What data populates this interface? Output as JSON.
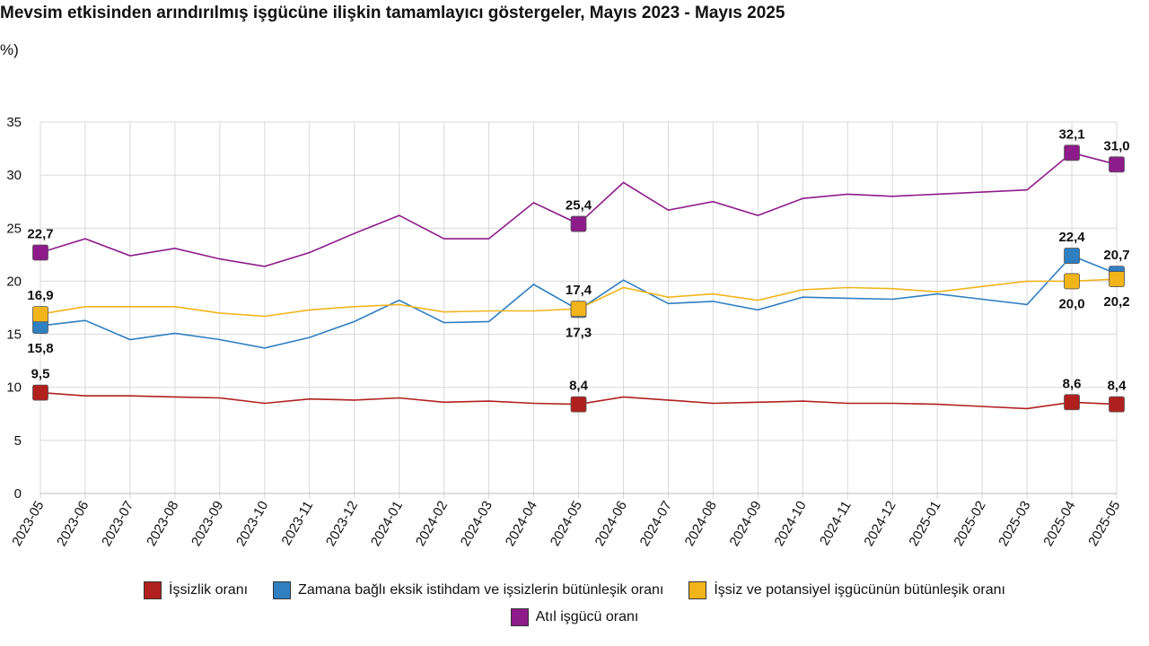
{
  "chart_data": {
    "type": "line",
    "title": "Mevsim etkisinden arındırılmış işgücüne ilişkin tamamlayıcı göstergeler, Mayıs 2023 - Mayıs 2025",
    "ylabel": "%)",
    "ylim": [
      0,
      35
    ],
    "yticks": [
      0,
      5,
      10,
      15,
      20,
      25,
      30,
      35
    ],
    "grid": true,
    "legend_position": "bottom",
    "x": [
      "2023-05",
      "2023-06",
      "2023-07",
      "2023-08",
      "2023-09",
      "2023-10",
      "2023-11",
      "2023-12",
      "2024-01",
      "2024-02",
      "2024-03",
      "2024-04",
      "2024-05",
      "2024-06",
      "2024-07",
      "2024-08",
      "2024-09",
      "2024-10",
      "2024-11",
      "2024-12",
      "2025-01",
      "2025-02",
      "2025-03",
      "2025-04",
      "2025-05"
    ],
    "series": [
      {
        "name": "İşsizlik oranı",
        "color": "#b0201e",
        "values": [
          9.5,
          9.2,
          9.2,
          9.1,
          9.0,
          8.5,
          8.9,
          8.8,
          9.0,
          8.6,
          8.7,
          8.5,
          8.4,
          9.1,
          8.8,
          8.5,
          8.6,
          8.7,
          8.5,
          8.5,
          8.4,
          8.2,
          8.0,
          8.6,
          8.4
        ],
        "markers": [
          0,
          12,
          23,
          24
        ],
        "labels": [
          {
            "index": 0,
            "text": "9,5",
            "pos": "above"
          },
          {
            "index": 12,
            "text": "8,4",
            "pos": "above"
          },
          {
            "index": 23,
            "text": "8,6",
            "pos": "above"
          },
          {
            "index": 24,
            "text": "8,4",
            "pos": "above"
          }
        ]
      },
      {
        "name": "Zamana bağlı eksik istihdam ve işsizlerin bütünleşik oranı",
        "color": "#2f7fc1",
        "values": [
          15.8,
          16.3,
          14.5,
          15.1,
          14.5,
          13.7,
          14.7,
          16.2,
          18.2,
          16.1,
          16.2,
          19.7,
          17.3,
          20.1,
          17.9,
          18.1,
          17.3,
          18.5,
          18.4,
          18.3,
          18.8,
          18.3,
          17.8,
          22.4,
          20.7
        ],
        "markers": [
          0,
          12,
          23,
          24
        ],
        "labels": [
          {
            "index": 0,
            "text": "15,8",
            "pos": "below"
          },
          {
            "index": 12,
            "text": "17,3",
            "pos": "below"
          },
          {
            "index": 23,
            "text": "22,4",
            "pos": "above"
          },
          {
            "index": 24,
            "text": "20,7",
            "pos": "above"
          }
        ]
      },
      {
        "name": "İşsiz ve potansiyel işgücünün bütünleşik oranı",
        "color": "#f2b41b",
        "values": [
          16.9,
          17.6,
          17.6,
          17.6,
          17.0,
          16.7,
          17.3,
          17.6,
          17.8,
          17.1,
          17.2,
          17.2,
          17.4,
          19.4,
          18.5,
          18.8,
          18.2,
          19.2,
          19.4,
          19.3,
          19.0,
          19.5,
          20.0,
          20.0,
          20.2
        ],
        "markers": [
          0,
          12,
          23,
          24
        ],
        "labels": [
          {
            "index": 0,
            "text": "16,9",
            "pos": "above"
          },
          {
            "index": 12,
            "text": "17,4",
            "pos": "above"
          },
          {
            "index": 23,
            "text": "20,0",
            "pos": "below"
          },
          {
            "index": 24,
            "text": "20,2",
            "pos": "below"
          }
        ]
      },
      {
        "name": "Atıl işgücü oranı",
        "color": "#8e1b8a",
        "values": [
          22.7,
          24.0,
          22.4,
          23.1,
          22.1,
          21.4,
          22.7,
          24.5,
          26.2,
          24.0,
          24.0,
          27.4,
          25.4,
          29.3,
          26.7,
          27.5,
          26.2,
          27.8,
          28.2,
          28.0,
          28.2,
          28.4,
          28.6,
          32.1,
          31.0
        ],
        "markers": [
          0,
          12,
          23,
          24
        ],
        "labels": [
          {
            "index": 0,
            "text": "22,7",
            "pos": "above"
          },
          {
            "index": 12,
            "text": "25,4",
            "pos": "above"
          },
          {
            "index": 23,
            "text": "32,1",
            "pos": "above"
          },
          {
            "index": 24,
            "text": "31,0",
            "pos": "above"
          }
        ]
      }
    ]
  }
}
